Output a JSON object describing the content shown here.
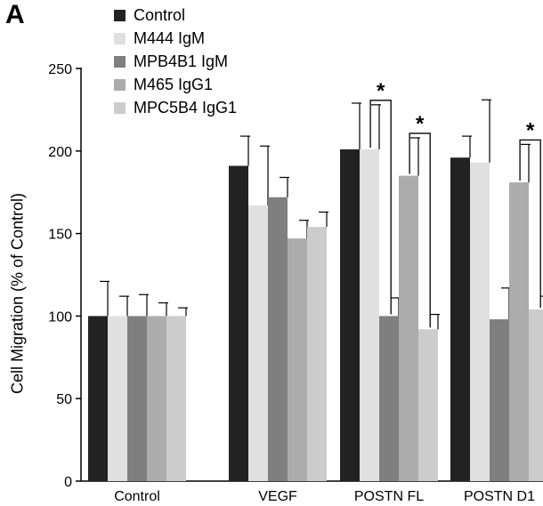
{
  "panel_label": "A",
  "colors": {
    "Control": "#222222",
    "M444 IgM": "#e0e0e0",
    "MPB4B1 IgM": "#7f7f7f",
    "M465 IgG1": "#acacac",
    "MPC5B4 IgG1": "#cccccc"
  },
  "chart_data": {
    "type": "bar",
    "title": "",
    "xlabel": "",
    "ylabel": "Cell Migration (% of Control)",
    "ylim": [
      0,
      250
    ],
    "yticks": [
      "0",
      "50",
      "100",
      "150",
      "200",
      "250"
    ],
    "grid": false,
    "legend": "top-left",
    "categories": [
      "Control",
      "VEGF",
      "POSTN FL",
      "POSTN D1"
    ],
    "series": [
      {
        "name": "Control",
        "values": [
          100,
          191,
          201,
          196
        ],
        "errors": [
          21,
          18,
          28,
          13
        ]
      },
      {
        "name": "M444 IgM",
        "values": [
          100,
          167,
          201,
          193
        ],
        "errors": [
          12,
          36,
          27,
          38
        ]
      },
      {
        "name": "MPB4B1 IgM",
        "values": [
          100,
          172,
          100,
          98
        ],
        "errors": [
          13,
          12,
          11,
          19
        ]
      },
      {
        "name": "M465 IgG1",
        "values": [
          100,
          147,
          185,
          181
        ],
        "errors": [
          8,
          11,
          23,
          23
        ]
      },
      {
        "name": "MPC5B4 IgG1",
        "values": [
          100,
          154,
          92,
          104
        ],
        "errors": [
          5,
          9,
          9,
          8
        ]
      }
    ],
    "annotations": [
      {
        "text": "*",
        "category": "POSTN FL",
        "from_series": "M444 IgM",
        "to_series": "MPB4B1 IgM"
      },
      {
        "text": "*",
        "category": "POSTN FL",
        "from_series": "M465 IgG1",
        "to_series": "MPC5B4 IgG1"
      },
      {
        "text": "*",
        "category": "POSTN D1",
        "from_series": "M465 IgG1",
        "to_series": "MPC5B4 IgG1"
      }
    ]
  }
}
